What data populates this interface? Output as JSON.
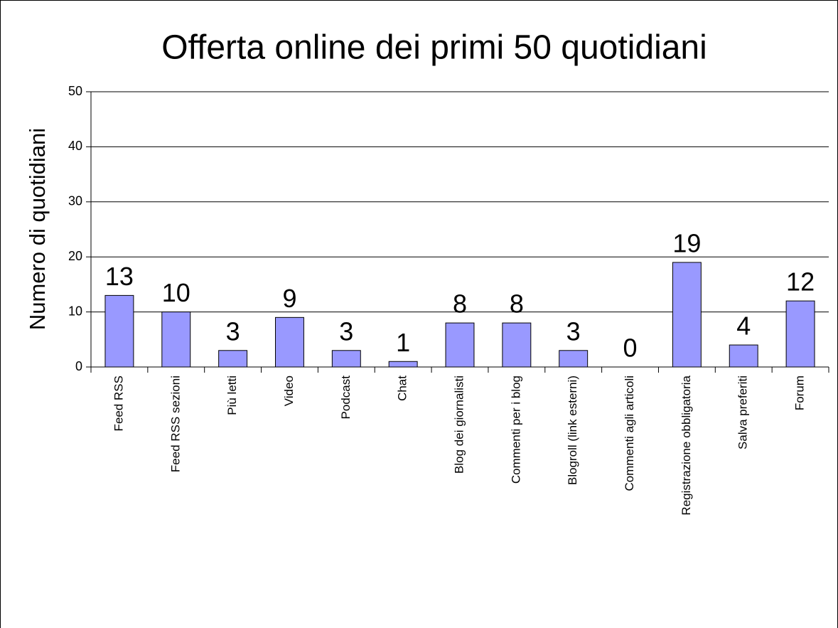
{
  "chart_data": {
    "type": "bar",
    "title": "Offerta online dei primi 50 quotidiani",
    "y_label": "Numero di quotidiani",
    "categories": [
      "Feed RSS",
      "Feed RSS sezioni",
      "Più letti",
      "Video",
      "Podcast",
      "Chat",
      "Blog dei giornalisti",
      "Commenti per i blog",
      "Blogroll (link esterni)",
      "Commenti agli articoli",
      "Registrazione obbligatoria",
      "Salva preferiti",
      "Forum"
    ],
    "values": [
      13,
      10,
      3,
      9,
      3,
      1,
      8,
      8,
      3,
      0,
      19,
      4,
      12
    ],
    "color": "#9999ff",
    "ylim": [
      0,
      50
    ],
    "yticks": [
      0,
      10,
      20,
      30,
      40,
      50
    ],
    "grid": true
  }
}
